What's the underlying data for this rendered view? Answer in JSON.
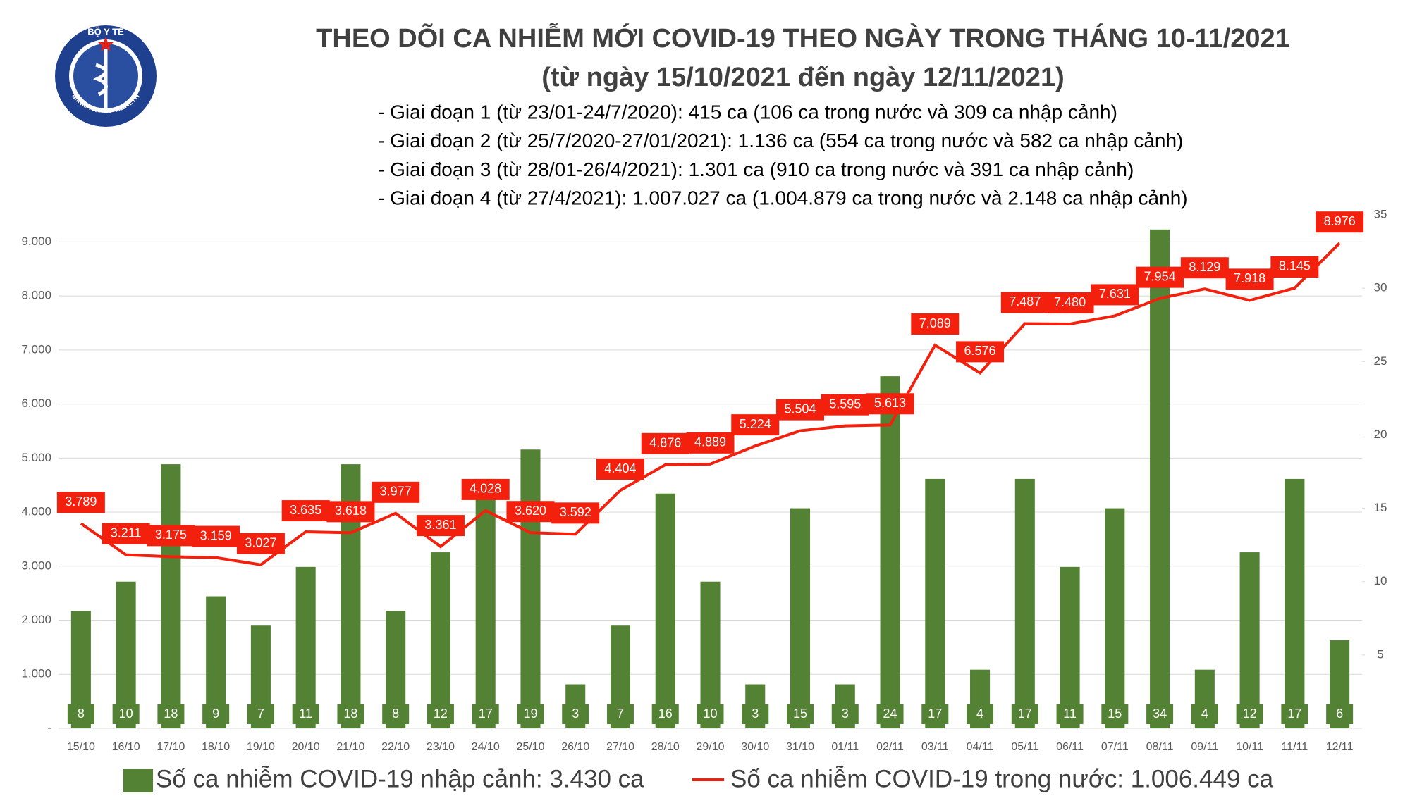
{
  "logo": {
    "top": "BỘ Y TẾ",
    "bottom": "MINISTRY OF HEALTH"
  },
  "chart_data": {
    "type": "combo",
    "title": "THEO DÕI CA NHIỄM MỚI COVID-19 THEO NGÀY TRONG THÁNG 10-11/2021",
    "subtitle": "(từ ngày 15/10/2021 đến ngày 12/11/2021)",
    "notes": [
      "- Giai đoạn 1 (từ 23/01-24/7/2020): 415 ca (106 ca trong nước và 309 ca nhập cảnh)",
      "- Giai đoạn 2 (từ 25/7/2020-27/01/2021): 1.136 ca (554 ca trong nước và 582 ca nhập cảnh)",
      "- Giai đoạn 3 (từ 28/01-26/4/2021): 1.301 ca (910 ca trong nước và 391 ca nhập cảnh)",
      "- Giai đoạn 4 (từ 27/4/2021): 1.007.027 ca (1.004.879 ca trong nước và 2.148 ca nhập cảnh)"
    ],
    "categories": [
      "15/10",
      "16/10",
      "17/10",
      "18/10",
      "19/10",
      "20/10",
      "21/10",
      "22/10",
      "23/10",
      "24/10",
      "25/10",
      "26/10",
      "27/10",
      "28/10",
      "29/10",
      "30/10",
      "31/10",
      "01/11",
      "02/11",
      "03/11",
      "04/11",
      "05/11",
      "06/11",
      "07/11",
      "08/11",
      "09/11",
      "10/11",
      "11/11",
      "12/11"
    ],
    "series": [
      {
        "name": "Số ca nhiễm COVID-19 nhập cảnh: 3.430 ca",
        "type": "bar",
        "axis": "y2",
        "color": "#548235",
        "values": [
          8,
          10,
          18,
          9,
          7,
          11,
          18,
          8,
          12,
          17,
          19,
          3,
          7,
          16,
          10,
          3,
          15,
          3,
          24,
          17,
          4,
          17,
          11,
          15,
          34,
          4,
          12,
          17,
          6
        ]
      },
      {
        "name": "Số ca nhiễm COVID-19 trong nước: 1.006.449 ca",
        "type": "line",
        "color": "#f2200c",
        "values": [
          3789,
          3211,
          3175,
          3159,
          3027,
          3635,
          3618,
          3977,
          3361,
          4028,
          3620,
          3592,
          4404,
          4876,
          4889,
          5224,
          5504,
          5595,
          5613,
          7089,
          6576,
          7487,
          7480,
          7631,
          7954,
          8129,
          7918,
          8145,
          8976
        ],
        "value_labels": [
          "3.789",
          "3.211",
          "3.175",
          "3.159",
          "3.027",
          "3.635",
          "3.618",
          "3.977",
          "3.361",
          "4.028",
          "3.620",
          "3.592",
          "4.404",
          "4.876",
          "4.889",
          "5.224",
          "5.504",
          "5.595",
          "5.613",
          "7.089",
          "6.576",
          "7.487",
          "7.480",
          "7.631",
          "7.954",
          "8.129",
          "7.918",
          "8.145",
          "8.976"
        ]
      }
    ],
    "ylim": [
      0,
      9500
    ],
    "yticks": [
      {
        "value": 0,
        "label": "-"
      },
      {
        "value": 1000,
        "label": "1.000"
      },
      {
        "value": 2000,
        "label": "2.000"
      },
      {
        "value": 3000,
        "label": "3.000"
      },
      {
        "value": 4000,
        "label": "4.000"
      },
      {
        "value": 5000,
        "label": "5.000"
      },
      {
        "value": 6000,
        "label": "6.000"
      },
      {
        "value": 7000,
        "label": "7.000"
      },
      {
        "value": 8000,
        "label": "8.000"
      },
      {
        "value": 9000,
        "label": "9.000"
      }
    ],
    "y2lim": [
      0,
      35
    ],
    "y2ticks": [
      5,
      10,
      15,
      20,
      25,
      30,
      35
    ],
    "grid": true
  }
}
